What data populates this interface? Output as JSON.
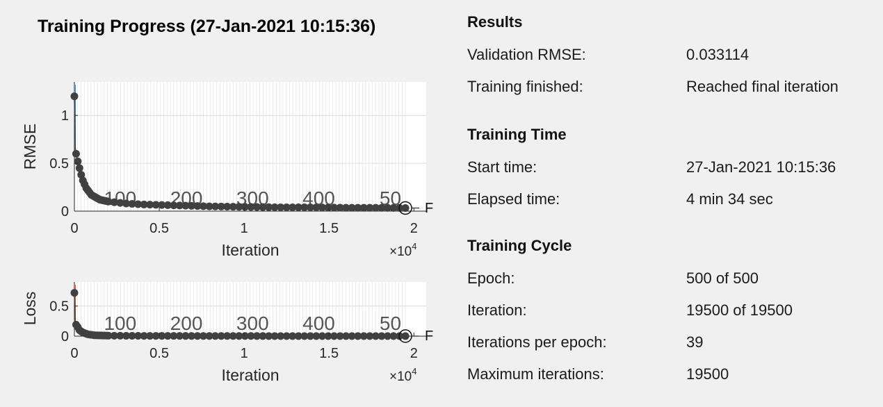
{
  "title": "Training Progress (27-Jan-2021 10:15:36)",
  "rmse_plot": {
    "ylabel": "RMSE",
    "xlabel": "Iteration",
    "xexp": "×10",
    "xexp_power": "4",
    "yticks": [
      "0",
      "0.5",
      "1"
    ],
    "xticks": [
      "0",
      "0.5",
      "1",
      "1.5",
      "2"
    ],
    "epoch_labels": [
      "100",
      "200",
      "300",
      "400",
      "50"
    ],
    "final_marker_label": "F"
  },
  "loss_plot": {
    "ylabel": "Loss",
    "xlabel": "Iteration",
    "xexp": "×10",
    "xexp_power": "4",
    "yticks": [
      "0",
      "0.5"
    ],
    "xticks": [
      "0",
      "0.5",
      "1",
      "1.5",
      "2"
    ],
    "epoch_labels": [
      "100",
      "200",
      "300",
      "400",
      "50"
    ],
    "final_marker_label": "F"
  },
  "results": {
    "heading": "Results",
    "rows": [
      {
        "label": "Validation RMSE:",
        "value": "0.033114"
      },
      {
        "label": "Training finished:",
        "value": "Reached final iteration"
      }
    ]
  },
  "training_time": {
    "heading": "Training Time",
    "rows": [
      {
        "label": "Start time:",
        "value": "27-Jan-2021 10:15:36"
      },
      {
        "label": "Elapsed time:",
        "value": "4 min 34 sec"
      }
    ]
  },
  "training_cycle": {
    "heading": "Training Cycle",
    "rows": [
      {
        "label": "Epoch:",
        "value": "500 of 500"
      },
      {
        "label": "Iteration:",
        "value": "19500 of 19500"
      },
      {
        "label": "Iterations per epoch:",
        "value": "39"
      },
      {
        "label": "Maximum iterations:",
        "value": "19500"
      }
    ]
  },
  "chart_data": [
    {
      "type": "line",
      "ylabel": "RMSE",
      "xlabel": "Iteration",
      "xlim": [
        0,
        20000
      ],
      "ylim": [
        0,
        1.35
      ],
      "x_scale_note": "×10^4",
      "series": [
        {
          "x": [
            0,
            50,
            100,
            200,
            300,
            400,
            500,
            700,
            1000,
            1500,
            2000,
            3000,
            4000,
            6000,
            8000,
            10000,
            12000,
            14000,
            16000,
            18000,
            19500
          ],
          "values": [
            1.2,
            0.66,
            0.6,
            0.52,
            0.45,
            0.38,
            0.32,
            0.24,
            0.17,
            0.12,
            0.1,
            0.08,
            0.07,
            0.06,
            0.05,
            0.045,
            0.04,
            0.04,
            0.035,
            0.035,
            0.033
          ]
        }
      ],
      "epoch_markers": [
        100,
        200,
        300,
        400,
        500
      ],
      "colors": {
        "training": "#4a7fc0",
        "validation": "#404040"
      }
    },
    {
      "type": "line",
      "ylabel": "Loss",
      "xlabel": "Iteration",
      "xlim": [
        0,
        20000
      ],
      "ylim": [
        0,
        0.9
      ],
      "x_scale_note": "×10^4",
      "series": [
        {
          "x": [
            0,
            50,
            100,
            200,
            300,
            500,
            800,
            1200,
            2000,
            4000,
            8000,
            12000,
            16000,
            19500
          ],
          "values": [
            0.72,
            0.22,
            0.19,
            0.15,
            0.1,
            0.06,
            0.03,
            0.015,
            0.008,
            0.005,
            0.003,
            0.002,
            0.002,
            0.001
          ]
        }
      ],
      "epoch_markers": [
        100,
        200,
        300,
        400,
        500
      ],
      "colors": {
        "training": "#e06030",
        "validation": "#404040"
      }
    }
  ]
}
